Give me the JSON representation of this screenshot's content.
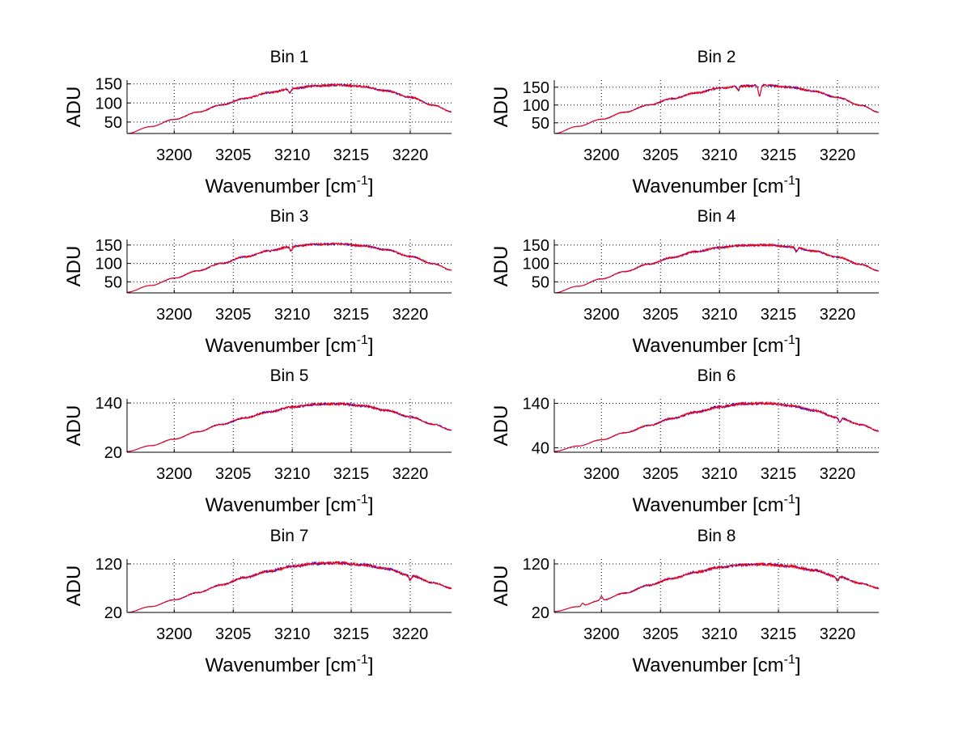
{
  "figure": {
    "background": "#ffffff",
    "line_colors": [
      "#0000ff",
      "#ff0000"
    ]
  },
  "chart_data": [
    {
      "type": "line",
      "title": "Bin 1",
      "xlabel": "Wavenumber [cm",
      "xlabel_sup": "-1",
      "xlabel_close": "]",
      "ylabel": "ADU",
      "xlim": [
        3196,
        3223.5
      ],
      "ylim": [
        20,
        160
      ],
      "xticks": [
        3200,
        3205,
        3210,
        3215,
        3220
      ],
      "yticks": [
        50,
        100,
        150
      ],
      "grid": true,
      "legend": "none",
      "series": [
        {
          "x": [
            3196,
            3198,
            3200,
            3202,
            3204,
            3206,
            3208,
            3210,
            3212,
            3214,
            3216,
            3218,
            3220,
            3222,
            3223.5
          ],
          "values": [
            20,
            38,
            57,
            76,
            95,
            112,
            127,
            138,
            145,
            147,
            143,
            132,
            115,
            94,
            77
          ]
        }
      ],
      "features": [
        {
          "x": 3209.8,
          "depth": 10
        }
      ]
    },
    {
      "type": "line",
      "title": "Bin 2",
      "xlabel": "Wavenumber [cm",
      "xlabel_sup": "-1",
      "xlabel_close": "]",
      "ylabel": "ADU",
      "xlim": [
        3196,
        3223.5
      ],
      "ylim": [
        20,
        170
      ],
      "xticks": [
        3200,
        3205,
        3210,
        3215,
        3220
      ],
      "yticks": [
        50,
        100,
        150
      ],
      "grid": true,
      "legend": "none",
      "series": [
        {
          "x": [
            3196,
            3198,
            3200,
            3202,
            3204,
            3206,
            3208,
            3210,
            3212,
            3214,
            3216,
            3218,
            3220,
            3222,
            3223.5
          ],
          "values": [
            20,
            40,
            60,
            80,
            100,
            118,
            134,
            147,
            154,
            155,
            150,
            139,
            121,
            99,
            80
          ]
        }
      ],
      "features": [
        {
          "x": 3211.6,
          "depth": 12
        },
        {
          "x": 3213.4,
          "depth": 30
        }
      ]
    },
    {
      "type": "line",
      "title": "Bin 3",
      "xlabel": "Wavenumber [cm",
      "xlabel_sup": "-1",
      "xlabel_close": "]",
      "ylabel": "ADU",
      "xlim": [
        3196,
        3223.5
      ],
      "ylim": [
        20,
        165
      ],
      "xticks": [
        3200,
        3205,
        3210,
        3215,
        3220
      ],
      "yticks": [
        50,
        100,
        150
      ],
      "grid": true,
      "legend": "none",
      "series": [
        {
          "x": [
            3196,
            3198,
            3200,
            3202,
            3204,
            3206,
            3208,
            3210,
            3212,
            3214,
            3216,
            3218,
            3220,
            3222,
            3223.5
          ],
          "values": [
            22,
            40,
            60,
            80,
            100,
            118,
            134,
            146,
            152,
            153,
            148,
            137,
            119,
            99,
            82
          ]
        }
      ],
      "features": [
        {
          "x": 3209.9,
          "depth": 12
        }
      ]
    },
    {
      "type": "line",
      "title": "Bin 4",
      "xlabel": "Wavenumber [cm",
      "xlabel_sup": "-1",
      "xlabel_close": "]",
      "ylabel": "ADU",
      "xlim": [
        3196,
        3223.5
      ],
      "ylim": [
        20,
        165
      ],
      "xticks": [
        3200,
        3205,
        3210,
        3215,
        3220
      ],
      "yticks": [
        50,
        100,
        150
      ],
      "grid": true,
      "legend": "none",
      "series": [
        {
          "x": [
            3196,
            3198,
            3200,
            3202,
            3204,
            3206,
            3208,
            3210,
            3212,
            3214,
            3216,
            3218,
            3220,
            3222,
            3223.5
          ],
          "values": [
            20,
            38,
            58,
            78,
            98,
            116,
            132,
            143,
            149,
            150,
            145,
            134,
            117,
            97,
            80
          ]
        }
      ],
      "features": [
        {
          "x": 3216.5,
          "depth": 10
        }
      ]
    },
    {
      "type": "line",
      "title": "Bin 5",
      "xlabel": "Wavenumber [cm",
      "xlabel_sup": "-1",
      "xlabel_close": "]",
      "ylabel": "ADU",
      "xlim": [
        3196,
        3223.5
      ],
      "ylim": [
        20,
        150
      ],
      "xticks": [
        3200,
        3205,
        3210,
        3215,
        3220
      ],
      "yticks": [
        20,
        140
      ],
      "grid": true,
      "legend": "none",
      "series": [
        {
          "x": [
            3196,
            3198,
            3200,
            3202,
            3204,
            3206,
            3208,
            3210,
            3212,
            3214,
            3216,
            3218,
            3220,
            3222,
            3223.5
          ],
          "values": [
            22,
            36,
            52,
            70,
            88,
            104,
            118,
            130,
            137,
            138,
            133,
            122,
            106,
            88,
            74
          ]
        }
      ],
      "features": []
    },
    {
      "type": "line",
      "title": "Bin 6",
      "xlabel": "Wavenumber [cm",
      "xlabel_sup": "-1",
      "xlabel_close": "]",
      "ylabel": "ADU",
      "xlim": [
        3196,
        3223.5
      ],
      "ylim": [
        30,
        150
      ],
      "xticks": [
        3200,
        3205,
        3210,
        3215,
        3220
      ],
      "yticks": [
        40,
        140
      ],
      "grid": true,
      "legend": "none",
      "series": [
        {
          "x": [
            3196,
            3198,
            3200,
            3202,
            3204,
            3206,
            3208,
            3210,
            3212,
            3214,
            3216,
            3218,
            3220,
            3222,
            3223.5
          ],
          "values": [
            32,
            44,
            58,
            74,
            90,
            106,
            120,
            132,
            139,
            140,
            135,
            124,
            108,
            92,
            78
          ]
        }
      ],
      "features": [
        {
          "x": 3220.2,
          "depth": 10
        }
      ]
    },
    {
      "type": "line",
      "title": "Bin 7",
      "xlabel": "Wavenumber [cm",
      "xlabel_sup": "-1",
      "xlabel_close": "]",
      "ylabel": "ADU",
      "xlim": [
        3196,
        3223.5
      ],
      "ylim": [
        20,
        130
      ],
      "xticks": [
        3200,
        3205,
        3210,
        3215,
        3220
      ],
      "yticks": [
        20,
        120
      ],
      "grid": true,
      "legend": "none",
      "series": [
        {
          "x": [
            3196,
            3198,
            3200,
            3202,
            3204,
            3206,
            3208,
            3210,
            3212,
            3214,
            3216,
            3218,
            3220,
            3222,
            3223.5
          ],
          "values": [
            20,
            32,
            46,
            61,
            77,
            92,
            105,
            115,
            121,
            122,
            118,
            110,
            96,
            81,
            70
          ]
        }
      ],
      "features": [
        {
          "x": 3220.0,
          "depth": 9
        }
      ]
    },
    {
      "type": "line",
      "title": "Bin 8",
      "xlabel": "Wavenumber [cm",
      "xlabel_sup": "-1",
      "xlabel_close": "]",
      "ylabel": "ADU",
      "xlim": [
        3196,
        3223.5
      ],
      "ylim": [
        20,
        130
      ],
      "xticks": [
        3200,
        3205,
        3210,
        3215,
        3220
      ],
      "yticks": [
        20,
        120
      ],
      "grid": true,
      "legend": "none",
      "series": [
        {
          "x": [
            3196,
            3198,
            3200,
            3202,
            3204,
            3206,
            3208,
            3210,
            3212,
            3214,
            3216,
            3218,
            3220,
            3222,
            3223.5
          ],
          "values": [
            22,
            32,
            45,
            60,
            76,
            90,
            103,
            113,
            118,
            119,
            115,
            107,
            94,
            80,
            70
          ]
        }
      ],
      "features": [
        {
          "x": 3198.4,
          "depth": -6
        },
        {
          "x": 3200.0,
          "depth": -8
        },
        {
          "x": 3220.0,
          "depth": 9
        }
      ]
    }
  ]
}
